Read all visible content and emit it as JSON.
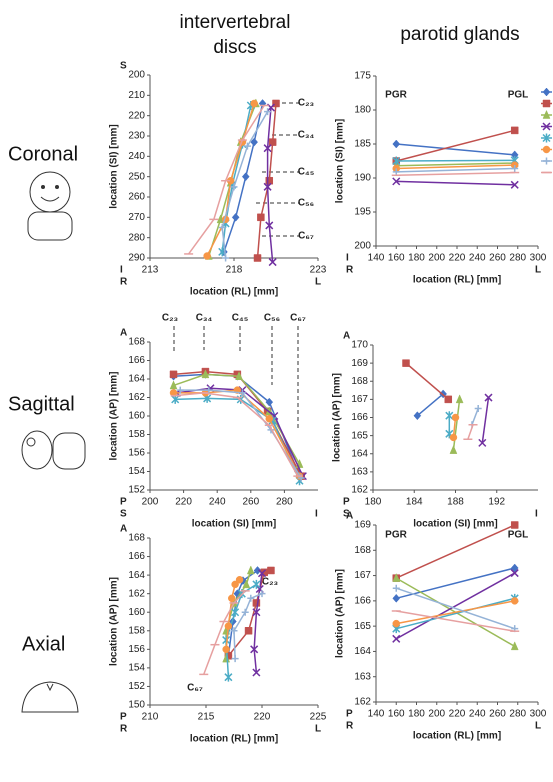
{
  "column_titles": [
    "intervertebral discs",
    "parotid glands"
  ],
  "row_labels": [
    "Coronal",
    "Sagittal",
    "Axial"
  ],
  "chart_data": [
    {
      "type": "line",
      "xlabel": "location (RL) [mm]",
      "ylabel": "location (SI) [mm]",
      "xlim": [
        213,
        223
      ],
      "xticks": [
        213,
        218,
        223
      ],
      "ylim": [
        200,
        290
      ],
      "yticks": [
        200,
        210,
        220,
        230,
        240,
        250,
        260,
        270,
        280,
        290
      ],
      "y_inverted": true,
      "y_top_label": "S",
      "y_bottom_label": "I",
      "x_left_label": "R",
      "x_right_label": "L",
      "annotations": [
        "C₂₃",
        "C₃₄",
        "C₄₅",
        "C₅₆",
        "C₆₇"
      ],
      "series": [
        {
          "color": "#4472c4",
          "marker": "diamond",
          "x": [
            219.7,
            219.2,
            218.7,
            218.1,
            217.4
          ],
          "values": [
            214,
            233,
            250,
            270,
            287
          ]
        },
        {
          "color": "#c0504d",
          "marker": "square",
          "x": [
            220.5,
            220.3,
            220.1,
            219.6,
            219.4
          ],
          "values": [
            214,
            233,
            252,
            270,
            290
          ]
        },
        {
          "color": "#9bbb59",
          "marker": "triangle",
          "x": [
            219.3,
            218.4,
            217.8,
            217.2,
            216.5
          ],
          "values": [
            214,
            233,
            253,
            271,
            289
          ]
        },
        {
          "color": "#7030a0",
          "marker": "x",
          "x": [
            220.2,
            220.0,
            220.0,
            220.1,
            220.3
          ],
          "values": [
            216,
            236,
            255,
            274,
            292
          ]
        },
        {
          "color": "#4bacc6",
          "marker": "star",
          "x": [
            219.0,
            218.5,
            217.9,
            217.5,
            217.3
          ],
          "values": [
            215,
            234,
            254,
            273,
            287
          ]
        },
        {
          "color": "#f79646",
          "marker": "circle",
          "x": [
            219.2,
            218.5,
            217.8,
            217.5,
            216.4
          ],
          "values": [
            214,
            233,
            252,
            271,
            289
          ]
        },
        {
          "color": "#95b3d7",
          "marker": "plus",
          "x": [
            220.0,
            218.8,
            218.0,
            217.3,
            217.5
          ],
          "values": [
            218,
            235,
            255,
            275,
            290
          ]
        },
        {
          "color": "#e6a0a0",
          "marker": "dash",
          "x": [
            219.8,
            218.5,
            217.5,
            216.8,
            215.3
          ],
          "values": [
            215,
            232,
            252,
            271,
            288
          ]
        }
      ]
    },
    {
      "type": "line",
      "xlabel": "location (RL) [mm]",
      "ylabel": "location (SI) [mm]",
      "xlim": [
        140,
        300
      ],
      "xticks": [
        140,
        160,
        180,
        200,
        220,
        240,
        260,
        280,
        300
      ],
      "ylim": [
        175,
        200
      ],
      "yticks": [
        175,
        180,
        185,
        190,
        195,
        200
      ],
      "y_inverted": true,
      "y_bottom_label": "I",
      "x_left_label": "R",
      "x_right_label": "L",
      "annotations": [
        "PGR",
        "PGL"
      ],
      "legend": true,
      "series": [
        {
          "color": "#4472c4",
          "marker": "diamond",
          "x": [
            160,
            277
          ],
          "values": [
            185,
            186.6
          ]
        },
        {
          "color": "#c0504d",
          "marker": "square",
          "x": [
            160,
            277
          ],
          "values": [
            187.5,
            183
          ]
        },
        {
          "color": "#9bbb59",
          "marker": "triangle",
          "x": [
            160,
            277
          ],
          "values": [
            188.2,
            187.8
          ]
        },
        {
          "color": "#7030a0",
          "marker": "x",
          "x": [
            160,
            277
          ],
          "values": [
            190.5,
            191
          ]
        },
        {
          "color": "#4bacc6",
          "marker": "star",
          "x": [
            160,
            277
          ],
          "values": [
            187.5,
            187.4
          ]
        },
        {
          "color": "#f79646",
          "marker": "circle",
          "x": [
            160,
            277
          ],
          "values": [
            188.6,
            188.1
          ]
        },
        {
          "color": "#95b3d7",
          "marker": "plus",
          "x": [
            160,
            277
          ],
          "values": [
            189.1,
            188.6
          ]
        },
        {
          "color": "#e6a0a0",
          "marker": "dash",
          "x": [
            160,
            277
          ],
          "values": [
            189.6,
            189.2
          ]
        }
      ]
    },
    {
      "type": "line",
      "xlabel": "location (SI) [mm]",
      "ylabel": "location (AP) [mm]",
      "xlim": [
        200,
        300
      ],
      "xticks": [
        200,
        220,
        240,
        260,
        280
      ],
      "ylim": [
        152,
        168
      ],
      "yticks": [
        152,
        154,
        156,
        158,
        160,
        162,
        164,
        166,
        168
      ],
      "y_top_label": "A",
      "y_bottom_label": "P",
      "x_left_label": "S",
      "x_right_label": "I",
      "annotations": [
        "C₂₃",
        "C₃₄",
        "C₄₅",
        "C₅₆",
        "C₆₇"
      ],
      "series": [
        {
          "color": "#4472c4",
          "marker": "diamond",
          "x": [
            214,
            233,
            252,
            271,
            288
          ],
          "values": [
            164.3,
            164.5,
            164.3,
            161.5,
            154
          ]
        },
        {
          "color": "#c0504d",
          "marker": "square",
          "x": [
            214,
            233,
            252,
            270,
            290
          ],
          "values": [
            164.5,
            164.8,
            164.5,
            160.5,
            153.5
          ]
        },
        {
          "color": "#9bbb59",
          "marker": "triangle",
          "x": [
            214,
            233,
            253,
            271,
            289
          ],
          "values": [
            163.3,
            164.5,
            164.3,
            160.5,
            154.8
          ]
        },
        {
          "color": "#7030a0",
          "marker": "x",
          "x": [
            216,
            236,
            255,
            274,
            291
          ],
          "values": [
            162.5,
            163,
            162.8,
            160,
            153.5
          ]
        },
        {
          "color": "#4bacc6",
          "marker": "star",
          "x": [
            215,
            234,
            254,
            273,
            289
          ],
          "values": [
            161.8,
            161.9,
            161.8,
            159.5,
            153
          ]
        },
        {
          "color": "#f79646",
          "marker": "circle",
          "x": [
            214,
            233,
            252,
            271,
            289
          ],
          "values": [
            162.5,
            162.5,
            162.8,
            159.7,
            153.5
          ]
        },
        {
          "color": "#95b3d7",
          "marker": "plus",
          "x": [
            218,
            235,
            255,
            272,
            290
          ],
          "values": [
            162.8,
            162.8,
            162.5,
            158.5,
            153.3
          ]
        },
        {
          "color": "#e6a0a0",
          "marker": "dash",
          "x": [
            215,
            232,
            252,
            271,
            288
          ],
          "values": [
            162.2,
            162.5,
            162,
            159,
            153.5
          ]
        }
      ]
    },
    {
      "type": "line",
      "xlabel": "location (SI) [mm]",
      "ylabel": "location (AP) [mm]",
      "xlim": [
        180,
        196
      ],
      "xticks": [
        180,
        184,
        188,
        192
      ],
      "ylim": [
        162,
        170
      ],
      "yticks": [
        162,
        163,
        164,
        165,
        166,
        167,
        168,
        169,
        170
      ],
      "y_top_label": "A",
      "y_bottom_label": "P",
      "x_left_label": "S",
      "x_right_label": "I",
      "series": [
        {
          "color": "#4472c4",
          "marker": "diamond",
          "x": [
            184.3,
            186.8
          ],
          "values": [
            166.1,
            167.3
          ]
        },
        {
          "color": "#c0504d",
          "marker": "square",
          "x": [
            183.2,
            187.3
          ],
          "values": [
            169,
            167
          ]
        },
        {
          "color": "#9bbb59",
          "marker": "triangle",
          "x": [
            187.8,
            188.4
          ],
          "values": [
            164.2,
            167
          ]
        },
        {
          "color": "#7030a0",
          "marker": "x",
          "x": [
            190.6,
            191.2
          ],
          "values": [
            164.6,
            167.1
          ]
        },
        {
          "color": "#4bacc6",
          "marker": "star",
          "x": [
            187.4,
            187.4
          ],
          "values": [
            165.1,
            166.1
          ]
        },
        {
          "color": "#f79646",
          "marker": "circle",
          "x": [
            187.8,
            188.0
          ],
          "values": [
            164.9,
            166
          ]
        },
        {
          "color": "#95b3d7",
          "marker": "plus",
          "x": [
            189.6,
            190.2
          ],
          "values": [
            165.6,
            166.5
          ]
        },
        {
          "color": "#e6a0a0",
          "marker": "dash",
          "x": [
            189.2,
            189.7
          ],
          "values": [
            164.8,
            165.6
          ]
        }
      ]
    },
    {
      "type": "line",
      "xlabel": "location (RL) [mm]",
      "ylabel": "location (AP) [mm]",
      "xlim": [
        210,
        225
      ],
      "xticks": [
        210,
        215,
        220,
        225
      ],
      "ylim": [
        150,
        168
      ],
      "yticks": [
        150,
        152,
        154,
        156,
        158,
        160,
        162,
        164,
        166,
        168
      ],
      "y_top_label": "A",
      "y_bottom_label": "P",
      "x_left_label": "R",
      "x_right_label": "L",
      "annotations": [
        "C₂₃",
        "C₆₇"
      ],
      "series": [
        {
          "color": "#4472c4",
          "marker": "diamond",
          "x": [
            219.6,
            218.3,
            217.8,
            217.4,
            217.0
          ],
          "values": [
            164.5,
            163.4,
            162,
            159,
            155.3
          ]
        },
        {
          "color": "#c0504d",
          "marker": "square",
          "x": [
            220.8,
            220.2,
            219.5,
            218.8,
            217.0
          ],
          "values": [
            164.5,
            164.3,
            161,
            158,
            155.3
          ]
        },
        {
          "color": "#9bbb59",
          "marker": "triangle",
          "x": [
            219.0,
            218.6,
            217.5,
            216.8,
            216.8
          ],
          "values": [
            164.5,
            163,
            161,
            158,
            155
          ]
        },
        {
          "color": "#7030a0",
          "marker": "x",
          "x": [
            220.0,
            219.8,
            219.5,
            219.3,
            219.5
          ],
          "values": [
            164.2,
            162.5,
            160,
            156,
            153.5
          ]
        },
        {
          "color": "#4bacc6",
          "marker": "star",
          "x": [
            219.5,
            218.2,
            217.6,
            216.8,
            217.0
          ],
          "values": [
            163,
            162,
            160,
            157,
            153
          ]
        },
        {
          "color": "#f79646",
          "marker": "circle",
          "x": [
            218.0,
            217.6,
            217.3,
            217.0,
            216.8
          ],
          "values": [
            163.5,
            163,
            161.5,
            158.5,
            156
          ]
        },
        {
          "color": "#95b3d7",
          "marker": "plus",
          "x": [
            220.0,
            219.0,
            218.5,
            217.5,
            217.6
          ],
          "values": [
            162,
            161.5,
            160,
            158,
            155
          ]
        },
        {
          "color": "#e6a0a0",
          "marker": "dash",
          "x": [
            218.5,
            217.5,
            216.6,
            215.8,
            214.8
          ],
          "values": [
            162.3,
            161,
            159,
            156.5,
            153.3
          ]
        }
      ]
    },
    {
      "type": "line",
      "xlabel": "location (RL) [mm]",
      "ylabel": "location (AP) [mm]",
      "xlim": [
        140,
        300
      ],
      "xticks": [
        140,
        160,
        180,
        200,
        220,
        240,
        260,
        280,
        300
      ],
      "ylim": [
        162,
        169
      ],
      "yticks": [
        162,
        163,
        164,
        165,
        166,
        167,
        168,
        169
      ],
      "y_top_label": "A",
      "y_bottom_label": "P",
      "x_left_label": "R",
      "x_right_label": "L",
      "annotations": [
        "PGR",
        "PGL"
      ],
      "series": [
        {
          "color": "#4472c4",
          "marker": "diamond",
          "x": [
            160,
            277
          ],
          "values": [
            166.1,
            167.3
          ]
        },
        {
          "color": "#c0504d",
          "marker": "square",
          "x": [
            160,
            277
          ],
          "values": [
            166.9,
            169
          ]
        },
        {
          "color": "#9bbb59",
          "marker": "triangle",
          "x": [
            160,
            277
          ],
          "values": [
            166.9,
            164.2
          ]
        },
        {
          "color": "#7030a0",
          "marker": "x",
          "x": [
            160,
            277
          ],
          "values": [
            164.5,
            167.1
          ]
        },
        {
          "color": "#4bacc6",
          "marker": "star",
          "x": [
            160,
            277
          ],
          "values": [
            164.9,
            166.1
          ]
        },
        {
          "color": "#f79646",
          "marker": "circle",
          "x": [
            160,
            277
          ],
          "values": [
            165.1,
            166
          ]
        },
        {
          "color": "#95b3d7",
          "marker": "plus",
          "x": [
            160,
            277
          ],
          "values": [
            166.5,
            164.9
          ]
        },
        {
          "color": "#e6a0a0",
          "marker": "dash",
          "x": [
            160,
            277
          ],
          "values": [
            165.6,
            164.8
          ]
        }
      ]
    }
  ]
}
